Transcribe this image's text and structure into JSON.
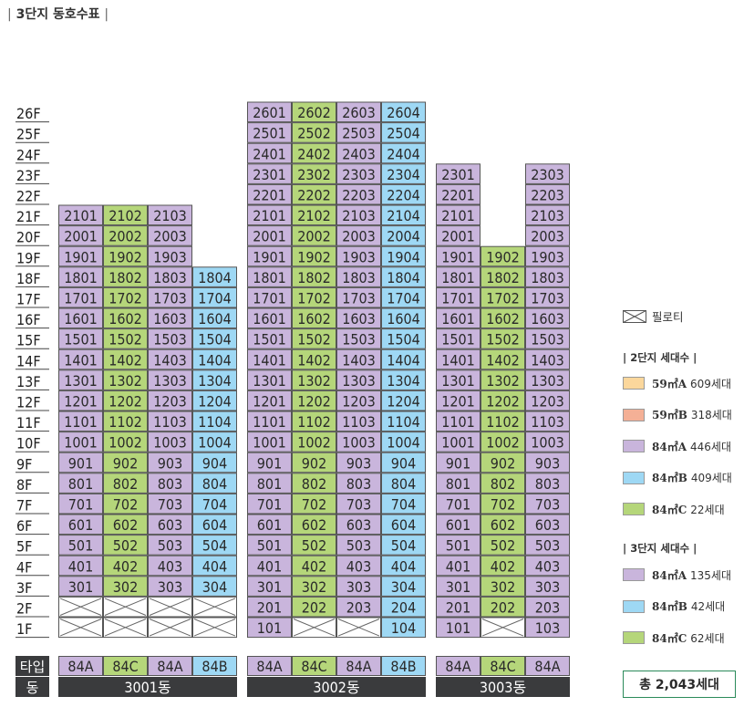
{
  "title": "3단지 동호수표",
  "title_bars": {
    "left": "|",
    "right": "|"
  },
  "colors": {
    "59A": "#fbd79c",
    "59B": "#f4b096",
    "84A": "#c9b5dc",
    "84B": "#9ed8f4",
    "84C": "#b5d67a",
    "dark": "#3a3b3d"
  },
  "floors": [
    "26F",
    "25F",
    "24F",
    "23F",
    "22F",
    "21F",
    "20F",
    "19F",
    "18F",
    "17F",
    "16F",
    "15F",
    "14F",
    "13F",
    "12F",
    "11F",
    "10F",
    "9F",
    "8F",
    "7F",
    "6F",
    "5F",
    "4F",
    "3F",
    "2F",
    "1F"
  ],
  "row_labels": {
    "type": "타입",
    "building": "동"
  },
  "buildings": [
    {
      "name": "3001동",
      "columns": [
        {
          "line": "01",
          "type": "84A",
          "top_floor": 21,
          "units": [
            "2101",
            "2001",
            "1901",
            "1801",
            "1701",
            "1601",
            "1501",
            "1401",
            "1301",
            "1201",
            "1101",
            "1001",
            "901",
            "801",
            "701",
            "601",
            "501",
            "401",
            "301",
            "",
            "",
            ""
          ],
          "pilotis_floors": [
            2,
            1
          ]
        },
        {
          "line": "02",
          "type": "84C",
          "top_floor": 21,
          "units": [
            "2102",
            "2002",
            "1902",
            "1802",
            "1702",
            "1602",
            "1502",
            "1402",
            "1302",
            "1202",
            "1102",
            "1002",
            "902",
            "802",
            "702",
            "602",
            "502",
            "402",
            "302"
          ],
          "pilotis_floors": [
            2,
            1
          ]
        },
        {
          "line": "03",
          "type": "84A",
          "top_floor": 21,
          "units": [
            "2103",
            "2003",
            "1903",
            "1803",
            "1703",
            "1603",
            "1503",
            "1403",
            "1303",
            "1203",
            "1103",
            "1003",
            "903",
            "803",
            "703",
            "603",
            "503",
            "403",
            "303"
          ],
          "pilotis_floors": [
            2,
            1
          ]
        },
        {
          "line": "04",
          "type": "84B",
          "top_floor": 18,
          "units": [
            "1804",
            "1704",
            "1604",
            "1504",
            "1404",
            "1304",
            "1204",
            "1104",
            "1004",
            "904",
            "804",
            "704",
            "604",
            "504",
            "404",
            "304"
          ],
          "pilotis_floors": [
            2,
            1
          ]
        }
      ]
    },
    {
      "name": "3002동",
      "columns": [
        {
          "line": "01",
          "type": "84A",
          "top_floor": 26,
          "units": [
            "2601",
            "2501",
            "2401",
            "2301",
            "2201",
            "2101",
            "2001",
            "1901",
            "1801",
            "1701",
            "1601",
            "1501",
            "1401",
            "1301",
            "1201",
            "1101",
            "1001",
            "901",
            "801",
            "701",
            "601",
            "501",
            "401",
            "301",
            "201",
            "101"
          ],
          "pilotis_floors": []
        },
        {
          "line": "02",
          "type": "84C",
          "top_floor": 26,
          "units": [
            "2602",
            "2502",
            "2402",
            "2302",
            "2202",
            "2102",
            "2002",
            "1902",
            "1802",
            "1702",
            "1602",
            "1502",
            "1402",
            "1302",
            "1202",
            "1102",
            "1002",
            "902",
            "802",
            "702",
            "602",
            "502",
            "402",
            "302",
            "202"
          ],
          "pilotis_floors": [
            1
          ]
        },
        {
          "line": "03",
          "type": "84A",
          "top_floor": 26,
          "units": [
            "2603",
            "2503",
            "2403",
            "2303",
            "2203",
            "2103",
            "2003",
            "1903",
            "1803",
            "1703",
            "1603",
            "1503",
            "1403",
            "1303",
            "1203",
            "1103",
            "1003",
            "903",
            "803",
            "703",
            "603",
            "503",
            "403",
            "303",
            "203"
          ],
          "pilotis_floors": [
            1
          ]
        },
        {
          "line": "04",
          "type": "84B",
          "top_floor": 26,
          "units": [
            "2604",
            "2504",
            "2404",
            "2304",
            "2204",
            "2104",
            "2004",
            "1904",
            "1804",
            "1704",
            "1604",
            "1504",
            "1404",
            "1304",
            "1204",
            "1104",
            "1004",
            "904",
            "804",
            "704",
            "604",
            "504",
            "404",
            "304",
            "204",
            "104"
          ],
          "pilotis_floors": []
        }
      ]
    },
    {
      "name": "3003동",
      "columns": [
        {
          "line": "01",
          "type": "84A",
          "top_floor": 23,
          "units": [
            "2301",
            "2201",
            "2101",
            "2001",
            "1901",
            "1801",
            "1701",
            "1601",
            "1501",
            "1401",
            "1301",
            "1201",
            "1101",
            "1001",
            "901",
            "801",
            "701",
            "601",
            "501",
            "401",
            "301",
            "201",
            "101"
          ],
          "pilotis_floors": []
        },
        {
          "line": "02",
          "type": "84C",
          "top_floor": 19,
          "units": [
            "1902",
            "1802",
            "1702",
            "1602",
            "1502",
            "1402",
            "1302",
            "1202",
            "1102",
            "1002",
            "902",
            "802",
            "702",
            "602",
            "502",
            "402",
            "302",
            "202"
          ],
          "pilotis_floors": [
            1
          ]
        },
        {
          "line": "03",
          "type": "84A",
          "top_floor": 23,
          "units": [
            "2303",
            "2203",
            "2103",
            "2003",
            "1903",
            "1803",
            "1703",
            "1603",
            "1503",
            "1403",
            "1303",
            "1203",
            "1103",
            "1003",
            "903",
            "803",
            "703",
            "603",
            "503",
            "403",
            "303",
            "203",
            "103"
          ],
          "pilotis_floors": []
        }
      ]
    }
  ],
  "legend": {
    "pilotis_label": "필로티",
    "group2_title": "2단지 세대수",
    "group2": [
      {
        "key": "59A",
        "label": "59㎡A",
        "count": "609세대"
      },
      {
        "key": "59B",
        "label": "59㎡B",
        "count": "318세대"
      },
      {
        "key": "84A",
        "label": "84㎡A",
        "count": "446세대"
      },
      {
        "key": "84B",
        "label": "84㎡B",
        "count": "409세대"
      },
      {
        "key": "84C",
        "label": "84㎡C",
        "count": "22세대"
      }
    ],
    "group3_title": "3단지 세대수",
    "group3": [
      {
        "key": "84A",
        "label": "84㎡A",
        "count": "135세대"
      },
      {
        "key": "84B",
        "label": "84㎡B",
        "count": "42세대"
      },
      {
        "key": "84C",
        "label": "84㎡C",
        "count": "62세대"
      }
    ]
  },
  "total": "총 2,043세대"
}
